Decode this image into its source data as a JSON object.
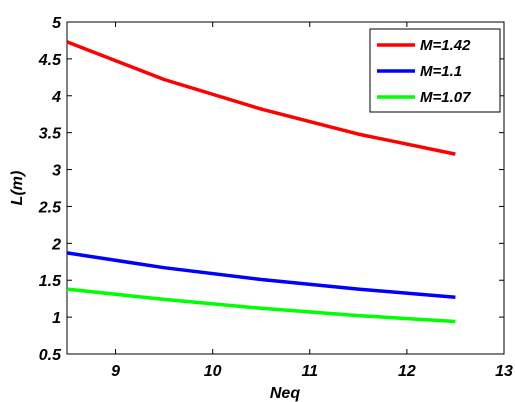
{
  "chart_data": {
    "type": "line",
    "title": "",
    "xlabel": "Neq",
    "ylabel": "L(m)",
    "xlim": [
      8.5,
      13
    ],
    "ylim": [
      0.5,
      5
    ],
    "x_ticks": [
      "9",
      "10",
      "11",
      "12",
      "13"
    ],
    "y_ticks": [
      "0.5",
      "1",
      "1.5",
      "2",
      "2.5",
      "3",
      "3.5",
      "4",
      "4.5",
      "5"
    ],
    "grid": false,
    "legend_position": "top-right",
    "series": [
      {
        "name": "M=1.42",
        "color": "#ff0000",
        "x": [
          8.5,
          9.5,
          10.5,
          11.5,
          12.5
        ],
        "y": [
          4.73,
          4.22,
          3.82,
          3.48,
          3.21
        ]
      },
      {
        "name": "M=1.1",
        "color": "#0000ff",
        "x": [
          8.5,
          9.5,
          10.5,
          11.5,
          12.5
        ],
        "y": [
          1.87,
          1.67,
          1.51,
          1.38,
          1.27
        ]
      },
      {
        "name": "M=1.07",
        "color": "#00ff00",
        "x": [
          8.5,
          9.5,
          10.5,
          11.5,
          12.5
        ],
        "y": [
          1.38,
          1.24,
          1.12,
          1.02,
          0.94
        ]
      }
    ]
  }
}
